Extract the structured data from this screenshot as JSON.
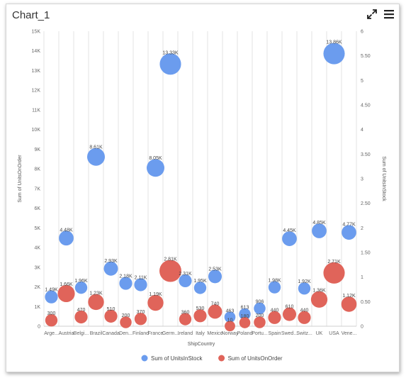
{
  "window": {
    "title": "Chart_1",
    "expand_icon": "expand-arrows-icon",
    "menu_icon": "hamburger-menu-icon"
  },
  "chart_data": {
    "type": "scatter",
    "subtype": "bubble",
    "title": "Chart_1",
    "xlabel": "ShipCountry",
    "ylabel": "Sum of UnitsOnOrder",
    "y2label": "Sum of UnitsInStock",
    "categories": [
      "Arge...",
      "Austria",
      "Belgi...",
      "Brazil",
      "Canada",
      "Den...",
      "Finland",
      "France",
      "Germ...",
      "Ireland",
      "Italy",
      "Mexico",
      "Norway",
      "Poland",
      "Portu...",
      "Spain",
      "Swed...",
      "Switz...",
      "UK",
      "USA",
      "Vene..."
    ],
    "ylim": [
      0,
      15000
    ],
    "y_ticks": [
      "0",
      "1K",
      "2K",
      "3K",
      "4K",
      "5K",
      "6K",
      "7K",
      "8K",
      "9K",
      "10K",
      "11K",
      "12K",
      "13K",
      "14K",
      "15K"
    ],
    "y2lim": [
      0,
      6
    ],
    "y2_ticks": [
      "0",
      "0.50",
      "1",
      "1.50",
      "2",
      "2.50",
      "3",
      "3.50",
      "4",
      "4.50",
      "5",
      "5.50",
      "6"
    ],
    "grid": true,
    "legend_position": "bottom",
    "series": [
      {
        "name": "Sum of UnitsInStock",
        "color": "#6b9cee",
        "values": [
          1490,
          4480,
          1960,
          8610,
          2930,
          2180,
          2110,
          8050,
          13330,
          2310,
          1950,
          2530,
          463,
          613,
          906,
          1980,
          4450,
          1920,
          4850,
          13860,
          4770
        ],
        "labels": [
          "1.49K",
          "4.48K",
          "1.96K",
          "8.61K",
          "2.93K",
          "2.18K",
          "2.11K",
          "8.05K",
          "13.33K",
          "2.31K",
          "1.95K",
          "2.53K",
          "463",
          "613",
          "906",
          "1.98K",
          "4.45K",
          "1.92K",
          "4.85K",
          "13.86K",
          "4.77K"
        ],
        "sizes": [
          0.6,
          0.75,
          0.55,
          1.0,
          0.7,
          0.6,
          0.6,
          1.0,
          1.3,
          0.6,
          0.55,
          0.65,
          0.45,
          0.5,
          0.5,
          0.55,
          0.75,
          0.55,
          0.75,
          1.3,
          0.75
        ]
      },
      {
        "name": "Sum of UnitsOnOrder",
        "color": "#e0645a",
        "values": [
          300,
          1660,
          470,
          1230,
          510,
          200,
          370,
          1190,
          2810,
          360,
          530,
          740,
          10,
          180,
          200,
          440,
          610,
          440,
          1360,
          2710,
          1120
        ],
        "labels": [
          "300",
          "1.66K",
          "470",
          "1.23K",
          "510",
          "200",
          "370",
          "1.19K",
          "2.81K",
          "360",
          "530",
          "740",
          "10",
          "180",
          "200",
          "440",
          "610",
          "440",
          "1.36K",
          "2.71K",
          "1.12K"
        ],
        "sizes": [
          0.55,
          0.95,
          0.6,
          0.85,
          0.6,
          0.5,
          0.55,
          0.85,
          1.35,
          0.55,
          0.6,
          0.7,
          0.4,
          0.45,
          0.5,
          0.6,
          0.65,
          0.6,
          0.9,
          1.3,
          0.8
        ]
      }
    ]
  }
}
